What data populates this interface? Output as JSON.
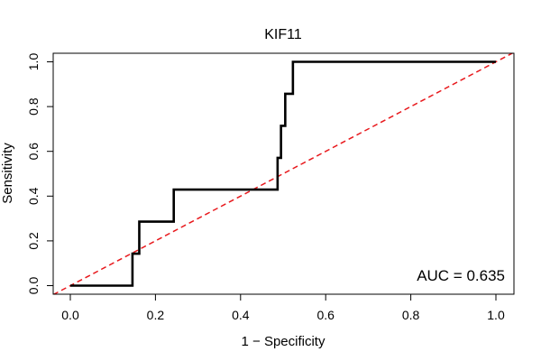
{
  "chart_data": {
    "type": "line",
    "title": "KIF11",
    "xlabel": "1 − Specificity",
    "ylabel": "Sensitivity",
    "xlim": [
      0,
      1
    ],
    "ylim": [
      0,
      1
    ],
    "x_ticks": [
      0.0,
      0.2,
      0.4,
      0.6,
      0.8,
      1.0
    ],
    "y_ticks": [
      0.0,
      0.2,
      0.4,
      0.6,
      0.8,
      1.0
    ],
    "x_tick_labels": [
      "0.0",
      "0.2",
      "0.4",
      "0.6",
      "0.8",
      "1.0"
    ],
    "y_tick_labels": [
      "0.0",
      "0.2",
      "0.4",
      "0.6",
      "0.8",
      "1.0"
    ],
    "grid": false,
    "series": [
      {
        "name": "ROC curve",
        "color": "#000000",
        "style": "solid",
        "x": [
          0.0,
          0.146,
          0.146,
          0.162,
          0.162,
          0.243,
          0.243,
          0.487,
          0.487,
          0.495,
          0.495,
          0.505,
          0.505,
          0.523,
          0.523,
          1.0
        ],
        "y": [
          0.0,
          0.0,
          0.143,
          0.143,
          0.286,
          0.286,
          0.429,
          0.429,
          0.571,
          0.571,
          0.714,
          0.714,
          0.857,
          0.857,
          1.0,
          1.0
        ]
      },
      {
        "name": "reference diagonal",
        "color": "#e8191d",
        "style": "dashed",
        "x": [
          -0.04,
          1.04
        ],
        "y": [
          -0.04,
          1.04
        ]
      }
    ],
    "annotations": [
      {
        "text": "AUC = 0.635",
        "position": "bottom-right"
      }
    ]
  }
}
